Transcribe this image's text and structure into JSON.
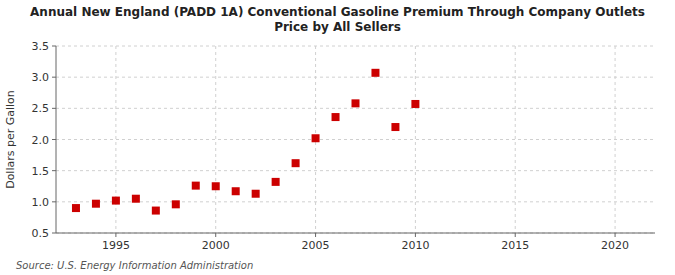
{
  "chart_data": {
    "type": "scatter",
    "title": "Annual New England (PADD 1A) Conventional Gasoline Premium Through Company Outlets\nPrice by All Sellers",
    "y_label": "Dollars per Gallon",
    "source": "Source: U.S. Energy Information Administration",
    "x": [
      1993,
      1994,
      1995,
      1996,
      1997,
      1998,
      1999,
      2000,
      2001,
      2002,
      2003,
      2004,
      2005,
      2006,
      2007,
      2008,
      2009,
      2010
    ],
    "values": [
      0.9,
      0.97,
      1.02,
      1.05,
      0.86,
      0.96,
      1.26,
      1.25,
      1.17,
      1.13,
      1.32,
      1.62,
      2.02,
      2.36,
      2.58,
      3.07,
      2.2,
      2.57
    ],
    "color": "#cc0000",
    "marker": "square",
    "xlim": [
      1992,
      2022
    ],
    "ylim": [
      0.5,
      3.5
    ],
    "xticks": [
      1995,
      2000,
      2005,
      2010,
      2015,
      2020
    ],
    "yticks": [
      0.5,
      {
        "value": 1,
        "label": "1.0"
      },
      1.5,
      {
        "value": 2,
        "label": "2.0"
      },
      2.5,
      {
        "value": 3,
        "label": "3.0"
      },
      3.5
    ],
    "grid": true
  }
}
